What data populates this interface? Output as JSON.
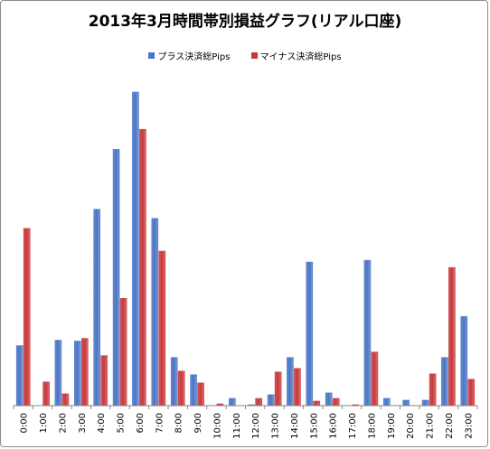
{
  "chart_data": {
    "type": "bar",
    "title": "2013年3月時間帯別損益グラフ(リアル口座)",
    "xlabel": "",
    "ylabel": "",
    "categories": [
      "0:00",
      "1:00",
      "2:00",
      "3:00",
      "4:00",
      "5:00",
      "6:00",
      "7:00",
      "8:00",
      "9:00",
      "10:00",
      "11:00",
      "12:00",
      "13:00",
      "14:00",
      "15:00",
      "16:00",
      "17:00",
      "18:00",
      "19:00",
      "20:00",
      "21:00",
      "22:00",
      "23:00"
    ],
    "series": [
      {
        "name": "プラス決済総Pips",
        "color": "#4a74c4",
        "values": [
          66,
          0,
          72,
          71,
          216,
          282,
          345,
          206,
          53,
          34,
          0,
          8,
          1,
          12,
          53,
          158,
          14,
          0,
          160,
          8,
          6,
          6,
          53,
          98
        ]
      },
      {
        "name": "マイナス決済総Pips",
        "color": "#c8383a",
        "values": [
          195,
          26,
          13,
          74,
          55,
          118,
          304,
          170,
          38,
          25,
          2,
          0,
          8,
          37,
          41,
          5,
          8,
          1,
          59,
          0,
          0,
          35,
          152,
          29
        ]
      }
    ],
    "ylim": [
      0,
      345
    ],
    "grid": false,
    "legend_position": "top-center"
  }
}
